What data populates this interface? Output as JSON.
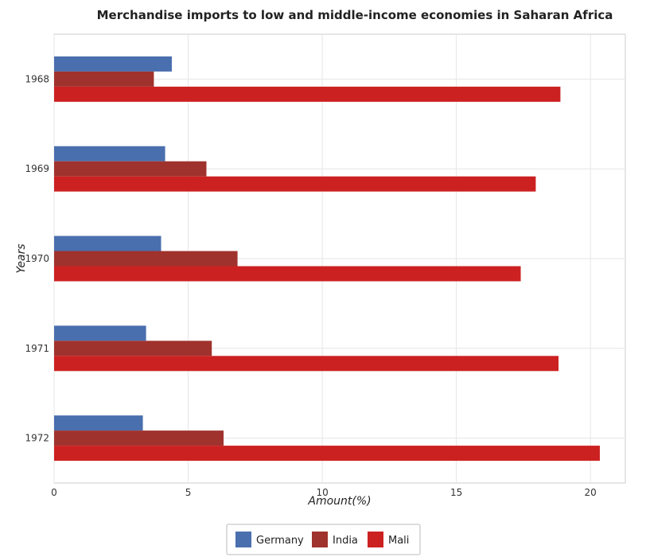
{
  "chart_data": {
    "type": "bar",
    "orientation": "horizontal",
    "title": "Merchandise imports to low and middle-income economies in Saharan Africa",
    "xlabel": "Amount(%)",
    "ylabel": "Years",
    "categories": [
      "1968",
      "1969",
      "1970",
      "1971",
      "1972"
    ],
    "series": [
      {
        "name": "Germany",
        "color": "#4a6fae",
        "values": [
          4.39,
          4.14,
          3.99,
          3.43,
          3.31
        ]
      },
      {
        "name": "India",
        "color": "#a0322d",
        "values": [
          3.72,
          5.68,
          6.84,
          5.88,
          6.32
        ]
      },
      {
        "name": "Mali",
        "color": "#cc2121",
        "values": [
          18.88,
          17.96,
          17.4,
          18.81,
          20.35
        ]
      }
    ],
    "xlim": [
      0,
      21.3
    ],
    "xticks": [
      0,
      5,
      10,
      15,
      20
    ],
    "grid": true,
    "legend_position": "bottom-center"
  }
}
